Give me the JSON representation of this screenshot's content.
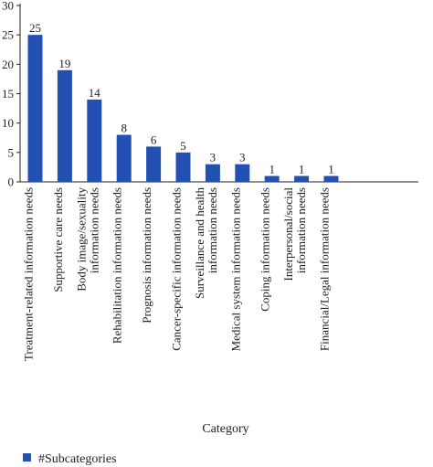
{
  "chart_data": {
    "type": "bar",
    "title": "",
    "xlabel": "Category",
    "ylabel": "",
    "ylim": [
      0,
      30
    ],
    "yticks": [
      0,
      5,
      10,
      15,
      20,
      25,
      30
    ],
    "grid": false,
    "legend_position": "bottom-left",
    "bar_color": "#2350b3",
    "categories": [
      [
        "Treatment-related information needs"
      ],
      [
        "Supportive care needs"
      ],
      [
        "Body image/sexuality",
        "information needs"
      ],
      [
        "Rehabilitation information needs"
      ],
      [
        "Prognosis information needs"
      ],
      [
        "Cancer-specific information needs"
      ],
      [
        "Surveillance and health",
        "information needs"
      ],
      [
        "Medical system information needs"
      ],
      [
        "Coping information needs"
      ],
      [
        "Interpersonal/social",
        "information needs"
      ],
      [
        "Financial/Legal information needs"
      ]
    ],
    "series": [
      {
        "name": "#Subcategories",
        "values": [
          25,
          19,
          14,
          8,
          6,
          5,
          3,
          3,
          1,
          1,
          1
        ]
      }
    ]
  }
}
